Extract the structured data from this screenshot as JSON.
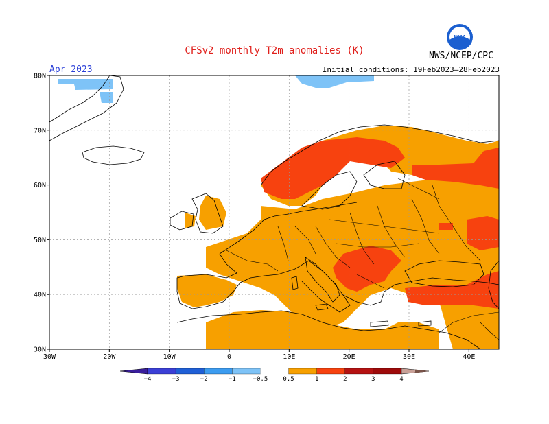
{
  "header": {
    "title": "CFSv2 monthly T2m anomalies (K)",
    "month": "Apr 2023",
    "initial_conditions": "Initial conditions: 19Feb2023–28Feb2023",
    "agency": "NWS/NCEP/CPC",
    "logo_text": "NOAA"
  },
  "map": {
    "lon_range": [
      -30,
      45
    ],
    "lat_range": [
      30,
      80
    ],
    "lon_ticks": [
      "30W",
      "20W",
      "10W",
      "0",
      "10E",
      "20E",
      "30E",
      "40E"
    ],
    "lat_ticks": [
      "30N",
      "40N",
      "50N",
      "60N",
      "70N",
      "80N"
    ],
    "gridlines": "dotted"
  },
  "legend": {
    "labels": [
      "−4",
      "−3",
      "−2",
      "−1",
      "−0.5",
      "0.5",
      "1",
      "2",
      "3",
      "4"
    ],
    "bins": [
      {
        "range": "< -4",
        "color": "#3a1e9c"
      },
      {
        "range": "-4 to -3",
        "color": "#3b3fd6"
      },
      {
        "range": "-3 to -2",
        "color": "#1f5fd6"
      },
      {
        "range": "-2 to -1",
        "color": "#3c9cf0"
      },
      {
        "range": "-1 to -0.5",
        "color": "#7ec3f7"
      },
      {
        "range": "-0.5 to 0.5",
        "color": "#ffffff"
      },
      {
        "range": "0.5 to 1",
        "color": "#f7a000"
      },
      {
        "range": "1 to 2",
        "color": "#f7420f"
      },
      {
        "range": "2 to 3",
        "color": "#b51212"
      },
      {
        "range": "3 to 4",
        "color": "#9e0a0a"
      },
      {
        "range": "> 4",
        "color": "#c9a198"
      }
    ],
    "over_color": "#7a5449"
  },
  "colors": {
    "warm_05_1": "#f7a000",
    "warm_1_2": "#f7420f",
    "cool_05_1": "#7ec3f7",
    "coast": "#000000"
  }
}
